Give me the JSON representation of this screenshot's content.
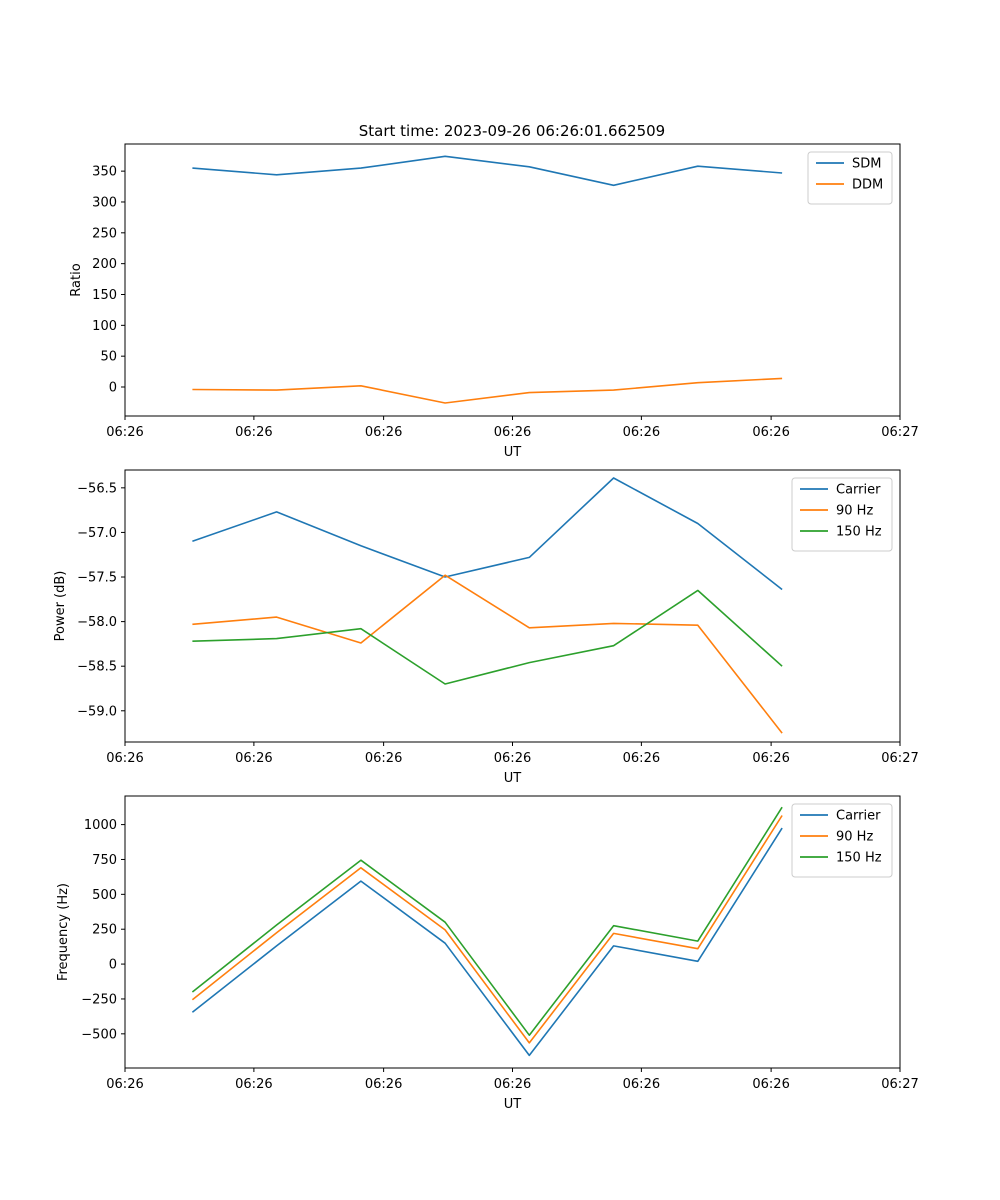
{
  "figure_title": "Start time: 2023-09-26 06:26:01.662509",
  "chart_data": [
    {
      "type": "line",
      "title": "Start time: 2023-09-26 06:26:01.662509",
      "xlabel": "UT",
      "ylabel": "Ratio",
      "x": [
        1,
        2,
        3,
        4,
        5,
        6,
        7,
        8
      ],
      "xlim": [
        0.2,
        9.4
      ],
      "x_ticks": [
        0.2,
        1.73,
        3.27,
        4.8,
        6.33,
        7.87,
        9.4
      ],
      "x_tick_labels": [
        "06:26",
        "06:26",
        "06:26",
        "06:26",
        "06:26",
        "06:26",
        "06:27"
      ],
      "ylim": [
        -47,
        394
      ],
      "y_ticks": [
        0,
        50,
        100,
        150,
        200,
        250,
        300,
        350
      ],
      "y_tick_labels": [
        "0",
        "50",
        "100",
        "150",
        "200",
        "250",
        "300",
        "350"
      ],
      "legend_position": "top-right",
      "series": [
        {
          "name": "SDM",
          "color": "#1f77b4",
          "values": [
            355,
            344,
            355,
            374,
            357,
            327,
            358,
            347
          ]
        },
        {
          "name": "DDM",
          "color": "#ff7f0e",
          "values": [
            -4,
            -5,
            2,
            -26,
            -9,
            -5,
            7,
            14
          ]
        }
      ]
    },
    {
      "type": "line",
      "xlabel": "UT",
      "ylabel": "Power (dB)",
      "x": [
        1,
        2,
        3,
        4,
        5,
        6,
        7,
        8
      ],
      "xlim": [
        0.2,
        9.4
      ],
      "x_ticks": [
        0.2,
        1.73,
        3.27,
        4.8,
        6.33,
        7.87,
        9.4
      ],
      "x_tick_labels": [
        "06:26",
        "06:26",
        "06:26",
        "06:26",
        "06:26",
        "06:26",
        "06:27"
      ],
      "ylim": [
        -59.35,
        -56.3
      ],
      "y_ticks": [
        -59.0,
        -58.5,
        -58.0,
        -57.5,
        -57.0,
        -56.5
      ],
      "y_tick_labels": [
        "−59.0",
        "−58.5",
        "−58.0",
        "−57.5",
        "−57.0",
        "−56.5"
      ],
      "legend_position": "top-right",
      "series": [
        {
          "name": "Carrier",
          "color": "#1f77b4",
          "values": [
            -57.1,
            -56.77,
            -57.15,
            -57.5,
            -57.28,
            -56.39,
            -56.9,
            -57.64
          ]
        },
        {
          "name": "90 Hz",
          "color": "#ff7f0e",
          "values": [
            -58.03,
            -57.95,
            -58.24,
            -57.48,
            -58.07,
            -58.02,
            -58.04,
            -59.25
          ]
        },
        {
          "name": "150 Hz",
          "color": "#2ca02c",
          "values": [
            -58.22,
            -58.19,
            -58.08,
            -58.7,
            -58.46,
            -58.27,
            -57.65,
            -58.5
          ]
        }
      ]
    },
    {
      "type": "line",
      "xlabel": "UT",
      "ylabel": "Frequency (Hz)",
      "x": [
        1,
        2,
        3,
        4,
        5,
        6,
        7,
        8
      ],
      "xlim": [
        0.2,
        9.4
      ],
      "x_ticks": [
        0.2,
        1.73,
        3.27,
        4.8,
        6.33,
        7.87,
        9.4
      ],
      "x_tick_labels": [
        "06:26",
        "06:26",
        "06:26",
        "06:26",
        "06:26",
        "06:26",
        "06:27"
      ],
      "ylim": [
        -745,
        1205
      ],
      "y_ticks": [
        -500,
        -250,
        0,
        250,
        500,
        750,
        1000
      ],
      "y_tick_labels": [
        "−500",
        "−250",
        "0",
        "250",
        "500",
        "750",
        "1000"
      ],
      "legend_position": "top-right",
      "series": [
        {
          "name": "Carrier",
          "color": "#1f77b4",
          "values": [
            -345,
            130,
            595,
            150,
            -655,
            130,
            20,
            975
          ]
        },
        {
          "name": "90 Hz",
          "color": "#ff7f0e",
          "values": [
            -255,
            225,
            690,
            245,
            -565,
            220,
            110,
            1065
          ]
        },
        {
          "name": "150 Hz",
          "color": "#2ca02c",
          "values": [
            -200,
            280,
            745,
            300,
            -510,
            275,
            165,
            1125
          ]
        }
      ]
    }
  ]
}
